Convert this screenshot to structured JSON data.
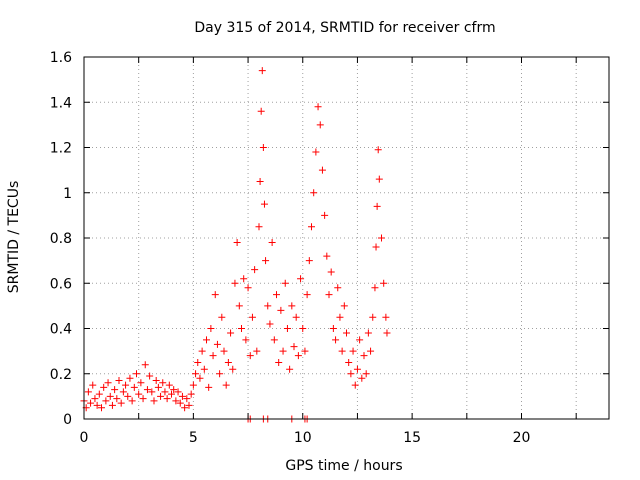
{
  "chart_data": {
    "type": "scatter",
    "title": "Day 315 of 2014, SRMTID for receiver cfrm",
    "xlabel": "GPS time / hours",
    "ylabel": "SRMTID / TECUs",
    "xlim": [
      0,
      24
    ],
    "ylim": [
      0,
      1.6
    ],
    "xticks": [
      0,
      5,
      10,
      15,
      20
    ],
    "xtick_labels": [
      "0",
      "5",
      "10",
      "15",
      "20"
    ],
    "yticks": [
      0,
      0.2,
      0.4,
      0.6,
      0.8,
      1.0,
      1.2,
      1.4,
      1.6
    ],
    "ytick_labels": [
      "0",
      "0.2",
      "0.4",
      "0.6",
      "0.8",
      "1",
      "1.2",
      "1.4",
      "1.6"
    ],
    "grid": true,
    "marker": "+",
    "marker_color": "#ff0000",
    "series": [
      {
        "name": "cfrm",
        "points": [
          [
            0.0,
            0.08
          ],
          [
            0.1,
            0.05
          ],
          [
            0.2,
            0.12
          ],
          [
            0.3,
            0.07
          ],
          [
            0.4,
            0.15
          ],
          [
            0.5,
            0.09
          ],
          [
            0.6,
            0.06
          ],
          [
            0.7,
            0.11
          ],
          [
            0.8,
            0.05
          ],
          [
            0.9,
            0.14
          ],
          [
            1.0,
            0.08
          ],
          [
            1.1,
            0.16
          ],
          [
            1.2,
            0.1
          ],
          [
            1.3,
            0.06
          ],
          [
            1.4,
            0.13
          ],
          [
            1.5,
            0.09
          ],
          [
            1.6,
            0.17
          ],
          [
            1.7,
            0.07
          ],
          [
            1.8,
            0.12
          ],
          [
            1.9,
            0.15
          ],
          [
            2.0,
            0.1
          ],
          [
            2.1,
            0.18
          ],
          [
            2.2,
            0.08
          ],
          [
            2.3,
            0.14
          ],
          [
            2.4,
            0.2
          ],
          [
            2.5,
            0.11
          ],
          [
            2.6,
            0.16
          ],
          [
            2.7,
            0.09
          ],
          [
            2.8,
            0.24
          ],
          [
            2.9,
            0.13
          ],
          [
            3.0,
            0.19
          ],
          [
            3.1,
            0.12
          ],
          [
            3.2,
            0.08
          ],
          [
            3.3,
            0.17
          ],
          [
            3.4,
            0.14
          ],
          [
            3.5,
            0.1
          ],
          [
            3.6,
            0.16
          ],
          [
            3.7,
            0.12
          ],
          [
            3.8,
            0.09
          ],
          [
            3.9,
            0.15
          ],
          [
            4.0,
            0.11
          ],
          [
            4.1,
            0.13
          ],
          [
            4.2,
            0.08
          ],
          [
            4.3,
            0.12
          ],
          [
            4.4,
            0.07
          ],
          [
            4.5,
            0.1
          ],
          [
            4.6,
            0.05
          ],
          [
            4.7,
            0.09
          ],
          [
            4.8,
            0.06
          ],
          [
            4.9,
            0.11
          ],
          [
            5.0,
            0.15
          ],
          [
            5.1,
            0.2
          ],
          [
            5.2,
            0.25
          ],
          [
            5.3,
            0.18
          ],
          [
            5.4,
            0.3
          ],
          [
            5.5,
            0.22
          ],
          [
            5.6,
            0.35
          ],
          [
            5.7,
            0.14
          ],
          [
            5.8,
            0.4
          ],
          [
            5.9,
            0.28
          ],
          [
            6.0,
            0.55
          ],
          [
            6.1,
            0.33
          ],
          [
            6.2,
            0.2
          ],
          [
            6.3,
            0.45
          ],
          [
            6.4,
            0.3
          ],
          [
            6.5,
            0.15
          ],
          [
            6.6,
            0.25
          ],
          [
            6.7,
            0.38
          ],
          [
            6.8,
            0.22
          ],
          [
            6.9,
            0.6
          ],
          [
            7.0,
            0.78
          ],
          [
            7.1,
            0.5
          ],
          [
            7.2,
            0.4
          ],
          [
            7.3,
            0.62
          ],
          [
            7.4,
            0.35
          ],
          [
            7.5,
            0.58
          ],
          [
            7.6,
            0.28
          ],
          [
            7.7,
            0.45
          ],
          [
            7.8,
            0.66
          ],
          [
            7.9,
            0.3
          ],
          [
            8.0,
            0.85
          ],
          [
            8.05,
            1.05
          ],
          [
            8.1,
            1.36
          ],
          [
            8.15,
            1.54
          ],
          [
            8.2,
            1.2
          ],
          [
            8.25,
            0.95
          ],
          [
            8.3,
            0.7
          ],
          [
            8.4,
            0.5
          ],
          [
            8.5,
            0.42
          ],
          [
            8.6,
            0.78
          ],
          [
            8.7,
            0.35
          ],
          [
            8.8,
            0.55
          ],
          [
            8.9,
            0.25
          ],
          [
            9.0,
            0.48
          ],
          [
            9.1,
            0.3
          ],
          [
            9.2,
            0.6
          ],
          [
            9.3,
            0.4
          ],
          [
            9.4,
            0.22
          ],
          [
            9.5,
            0.5
          ],
          [
            9.6,
            0.32
          ],
          [
            9.7,
            0.45
          ],
          [
            9.8,
            0.28
          ],
          [
            9.9,
            0.62
          ],
          [
            10.0,
            0.4
          ],
          [
            10.1,
            0.3
          ],
          [
            10.2,
            0.55
          ],
          [
            10.3,
            0.7
          ],
          [
            10.4,
            0.85
          ],
          [
            10.5,
            1.0
          ],
          [
            10.6,
            1.18
          ],
          [
            10.7,
            1.38
          ],
          [
            10.8,
            1.3
          ],
          [
            10.9,
            1.1
          ],
          [
            11.0,
            0.9
          ],
          [
            11.1,
            0.72
          ],
          [
            11.2,
            0.55
          ],
          [
            11.3,
            0.65
          ],
          [
            11.4,
            0.4
          ],
          [
            11.5,
            0.35
          ],
          [
            11.6,
            0.58
          ],
          [
            11.7,
            0.45
          ],
          [
            11.8,
            0.3
          ],
          [
            11.9,
            0.5
          ],
          [
            12.0,
            0.38
          ],
          [
            12.1,
            0.25
          ],
          [
            12.2,
            0.2
          ],
          [
            12.3,
            0.3
          ],
          [
            12.4,
            0.15
          ],
          [
            12.5,
            0.22
          ],
          [
            12.6,
            0.35
          ],
          [
            12.7,
            0.18
          ],
          [
            12.8,
            0.28
          ],
          [
            12.9,
            0.2
          ],
          [
            13.0,
            0.38
          ],
          [
            13.1,
            0.3
          ],
          [
            13.2,
            0.45
          ],
          [
            13.3,
            0.58
          ],
          [
            13.35,
            0.76
          ],
          [
            13.4,
            0.94
          ],
          [
            13.45,
            1.19
          ],
          [
            13.5,
            1.06
          ],
          [
            13.6,
            0.8
          ],
          [
            13.7,
            0.6
          ],
          [
            13.8,
            0.45
          ],
          [
            13.85,
            0.38
          ]
        ]
      }
    ],
    "baseline_points": [
      7.5,
      7.6,
      8.2,
      8.4,
      9.5,
      10.1,
      10.2
    ]
  }
}
